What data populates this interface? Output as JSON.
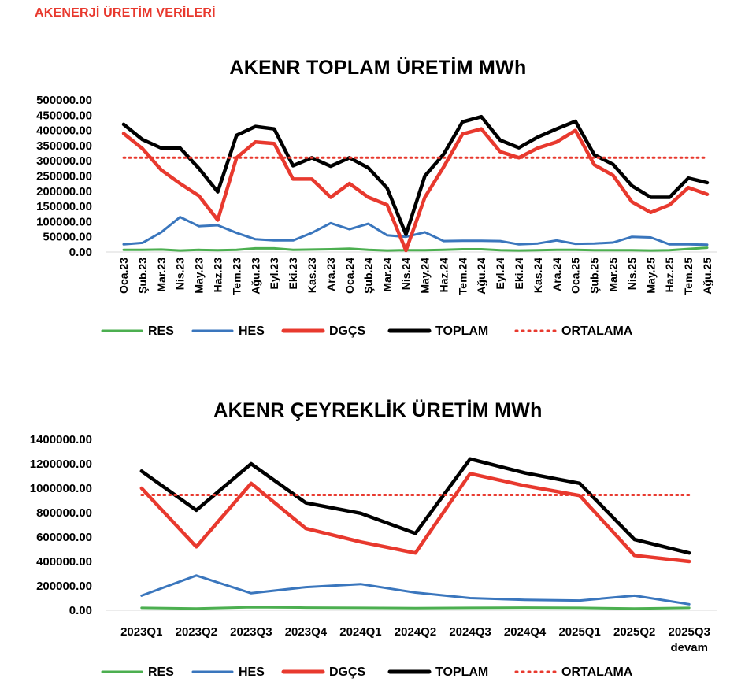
{
  "page": {
    "heading": "AKENERJİ ÜRETİM VERİLERİ",
    "heading_color": "#e8392e"
  },
  "colors": {
    "RES": "#4caf50",
    "HES": "#3a76bd",
    "DGÇS": "#e8392e",
    "TOPLAM": "#000000",
    "ORTALAMA": "#e8392e"
  },
  "chart_data": [
    {
      "type": "line",
      "title": "AKENR TOPLAM ÜRETİM MWh",
      "ylim": [
        0,
        500000
      ],
      "yticks": [
        "500000.00",
        "450000.00",
        "400000.00",
        "350000.00",
        "300000.00",
        "250000.00",
        "200000.00",
        "150000.00",
        "100000.00",
        "50000.00",
        "0.00"
      ],
      "ytick_values": [
        500000,
        450000,
        400000,
        350000,
        300000,
        250000,
        200000,
        150000,
        100000,
        50000,
        0
      ],
      "categories": [
        "Oca.23",
        "Şub.23",
        "Mar.23",
        "Nis.23",
        "May.23",
        "Haz.23",
        "Tem.23",
        "Ağu.23",
        "Eyl.23",
        "Eki.23",
        "Kas.23",
        "Ara.23",
        "Oca.24",
        "Şub.24",
        "Mar.24",
        "Nis.24",
        "May.24",
        "Haz.24",
        "Tem.24",
        "Ağu.24",
        "Eyl.24",
        "Eki.24",
        "Kas.24",
        "Ara.24",
        "Oca.25",
        "Şub.25",
        "Mar.25",
        "Nis.25",
        "May.25",
        "Haz.25",
        "Tem.25",
        "Ağu.25"
      ],
      "x_labels_rotated": true,
      "grid": false,
      "legend_position": "bottom",
      "series": [
        {
          "name": "RES",
          "style": "solid",
          "values": [
            7000,
            7000,
            8000,
            5000,
            7000,
            6000,
            7000,
            12000,
            12000,
            7000,
            8000,
            9000,
            11000,
            7000,
            5000,
            6000,
            6000,
            7000,
            9000,
            9000,
            6000,
            5000,
            6000,
            7000,
            7000,
            6000,
            6000,
            6000,
            5000,
            6000,
            10000,
            14000
          ]
        },
        {
          "name": "HES",
          "style": "solid",
          "values": [
            25000,
            30000,
            65000,
            115000,
            85000,
            88000,
            63000,
            42000,
            38000,
            38000,
            63000,
            95000,
            75000,
            93000,
            55000,
            50000,
            65000,
            36000,
            37000,
            37000,
            36000,
            25000,
            28000,
            38000,
            27000,
            28000,
            31000,
            50000,
            48000,
            25000,
            25000,
            24000
          ]
        },
        {
          "name": "DGÇS",
          "style": "solid",
          "values": [
            390000,
            340000,
            270000,
            225000,
            185000,
            105000,
            310000,
            362000,
            357000,
            240000,
            240000,
            180000,
            225000,
            180000,
            155000,
            5000,
            180000,
            280000,
            388000,
            405000,
            330000,
            310000,
            342000,
            362000,
            400000,
            287000,
            252000,
            165000,
            130000,
            155000,
            212000,
            190000
          ]
        },
        {
          "name": "TOPLAM",
          "style": "solid",
          "values": [
            420000,
            370000,
            342000,
            342000,
            275000,
            198000,
            384000,
            413000,
            405000,
            284000,
            310000,
            282000,
            310000,
            277000,
            210000,
            58000,
            250000,
            322000,
            428000,
            445000,
            368000,
            343000,
            378000,
            405000,
            430000,
            320000,
            288000,
            218000,
            180000,
            180000,
            243000,
            228000
          ]
        },
        {
          "name": "ORTALAMA",
          "style": "dotted",
          "values": [
            310000,
            310000,
            310000,
            310000,
            310000,
            310000,
            310000,
            310000,
            310000,
            310000,
            310000,
            310000,
            310000,
            310000,
            310000,
            310000,
            310000,
            310000,
            310000,
            310000,
            310000,
            310000,
            310000,
            310000,
            310000,
            310000,
            310000,
            310000,
            310000,
            310000,
            310000,
            310000
          ]
        }
      ]
    },
    {
      "type": "line",
      "title": "AKENR ÇEYREKLİK ÜRETİM MWh",
      "ylim": [
        0,
        1400000
      ],
      "yticks": [
        "1400000.00",
        "1200000.00",
        "1000000.00",
        "800000.00",
        "600000.00",
        "400000.00",
        "200000.00",
        "0.00"
      ],
      "ytick_values": [
        1400000,
        1200000,
        1000000,
        800000,
        600000,
        400000,
        200000,
        0
      ],
      "categories": [
        "2023Q1",
        "2023Q2",
        "2023Q3",
        "2023Q4",
        "2024Q1",
        "2024Q2",
        "2024Q3",
        "2024Q4",
        "2025Q1",
        "2025Q2",
        "2025Q3 devam"
      ],
      "x_labels_rotated": false,
      "grid": false,
      "legend_position": "bottom",
      "series": [
        {
          "name": "RES",
          "style": "solid",
          "values": [
            20000,
            15000,
            25000,
            22000,
            20000,
            18000,
            20000,
            22000,
            20000,
            15000,
            20000
          ]
        },
        {
          "name": "HES",
          "style": "solid",
          "values": [
            120000,
            285000,
            140000,
            190000,
            215000,
            145000,
            100000,
            85000,
            80000,
            120000,
            50000
          ]
        },
        {
          "name": "DGÇS",
          "style": "solid",
          "values": [
            1000000,
            520000,
            1040000,
            670000,
            560000,
            470000,
            1120000,
            1020000,
            940000,
            450000,
            400000
          ]
        },
        {
          "name": "TOPLAM",
          "style": "solid",
          "values": [
            1140000,
            820000,
            1200000,
            880000,
            795000,
            630000,
            1240000,
            1125000,
            1040000,
            580000,
            470000
          ]
        },
        {
          "name": "ORTALAMA",
          "style": "dotted",
          "values": [
            945000,
            945000,
            945000,
            945000,
            945000,
            945000,
            945000,
            945000,
            945000,
            945000,
            945000
          ]
        }
      ]
    }
  ]
}
